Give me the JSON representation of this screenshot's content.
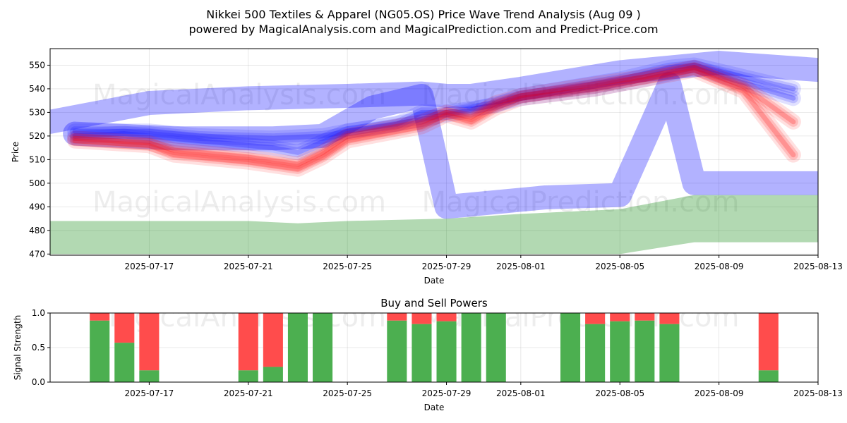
{
  "title_line1": "Nikkei 500 Textiles & Apparel (NG05.OS) Price Wave Trend Analysis (Aug 09 )",
  "title_line2": "powered by MagicalAnalysis.com and MagicalPrediction.com and Predict-Price.com",
  "watermarks": [
    "MagicalAnalysis.com",
    "MagicalPrediction.com"
  ],
  "colors": {
    "blue_band": "#0000ff",
    "red_band": "#ff0000",
    "green_band": "#008000",
    "buy_bar": "#4caf50",
    "sell_bar": "#ff4c4c"
  },
  "chart_data": [
    {
      "type": "area",
      "title": "",
      "xlabel": "Date",
      "ylabel": "Price",
      "xlim": [
        "2025-07-13",
        "2025-08-13"
      ],
      "ylim": [
        469.5,
        557
      ],
      "x_ticks": [
        "2025-07-17",
        "2025-07-21",
        "2025-07-25",
        "2025-07-29",
        "2025-08-01",
        "2025-08-05",
        "2025-08-09",
        "2025-08-13"
      ],
      "y_ticks": [
        470,
        480,
        490,
        500,
        510,
        520,
        530,
        540,
        550
      ],
      "grid": true,
      "series": [
        {
          "color": "blue",
          "kind": "wave",
          "points": [
            [
              "2025-07-14",
              522
            ],
            [
              "2025-07-17",
              522
            ],
            [
              "2025-07-19",
              520
            ],
            [
              "2025-07-22",
              519
            ],
            [
              "2025-07-24",
              520
            ],
            [
              "2025-07-25",
              522
            ],
            [
              "2025-07-27",
              525
            ],
            [
              "2025-07-28",
              530
            ],
            [
              "2025-07-29",
              530
            ],
            [
              "2025-07-31",
              533
            ],
            [
              "2025-08-01",
              537
            ],
            [
              "2025-08-05",
              544
            ],
            [
              "2025-08-07",
              549
            ],
            [
              "2025-08-08",
              550
            ],
            [
              "2025-08-12",
              540
            ]
          ]
        },
        {
          "color": "blue",
          "kind": "wave",
          "points": [
            [
              "2025-07-14",
              520
            ],
            [
              "2025-07-16",
              521
            ],
            [
              "2025-07-18",
              519
            ],
            [
              "2025-07-20",
              517
            ],
            [
              "2025-07-22",
              515
            ],
            [
              "2025-07-23",
              513
            ],
            [
              "2025-07-25",
              522
            ],
            [
              "2025-07-28",
              527
            ],
            [
              "2025-07-30",
              531
            ],
            [
              "2025-08-01",
              536
            ],
            [
              "2025-08-04",
              540
            ],
            [
              "2025-08-06",
              544
            ],
            [
              "2025-08-08",
              549
            ],
            [
              "2025-08-12",
              536
            ]
          ]
        },
        {
          "color": "blue",
          "kind": "broad",
          "points": [
            [
              "2025-07-13",
              526
            ],
            [
              "2025-07-17",
              534
            ],
            [
              "2025-07-21",
              536
            ],
            [
              "2025-07-25",
              537
            ],
            [
              "2025-07-28",
              538
            ],
            [
              "2025-07-29",
              537
            ],
            [
              "2025-07-30",
              537
            ],
            [
              "2025-08-01",
              540
            ],
            [
              "2025-08-05",
              547
            ],
            [
              "2025-08-09",
              551
            ],
            [
              "2025-08-13",
              548
            ]
          ]
        },
        {
          "color": "blue",
          "kind": "broad",
          "points": [
            [
              "2025-07-14",
              521
            ],
            [
              "2025-07-18",
              519
            ],
            [
              "2025-07-22",
              519
            ],
            [
              "2025-07-24",
              520
            ],
            [
              "2025-07-26",
              532
            ],
            [
              "2025-07-28",
              537
            ],
            [
              "2025-07-29",
              490
            ],
            [
              "2025-07-31",
              492
            ],
            [
              "2025-08-02",
              494
            ],
            [
              "2025-08-05",
              495
            ],
            [
              "2025-08-07",
              542
            ],
            [
              "2025-08-08",
              500
            ],
            [
              "2025-08-13",
              500
            ]
          ]
        },
        {
          "color": "red",
          "kind": "wave",
          "points": [
            [
              "2025-07-14",
              519
            ],
            [
              "2025-07-17",
              517
            ],
            [
              "2025-07-18",
              514
            ],
            [
              "2025-07-21",
              511
            ],
            [
              "2025-07-23",
              508
            ],
            [
              "2025-07-24",
              513
            ],
            [
              "2025-07-25",
              520
            ],
            [
              "2025-07-28",
              526
            ],
            [
              "2025-07-29",
              530
            ],
            [
              "2025-07-30",
              528
            ],
            [
              "2025-07-31",
              534
            ],
            [
              "2025-08-01",
              537
            ],
            [
              "2025-08-04",
              542
            ],
            [
              "2025-08-06",
              545
            ],
            [
              "2025-08-08",
              549
            ],
            [
              "2025-08-10",
              541
            ],
            [
              "2025-08-12",
              526
            ]
          ]
        },
        {
          "color": "red",
          "kind": "wave",
          "points": [
            [
              "2025-07-14",
              518
            ],
            [
              "2025-07-17",
              516
            ],
            [
              "2025-07-18",
              512
            ],
            [
              "2025-07-21",
              509
            ],
            [
              "2025-07-23",
              506
            ],
            [
              "2025-07-24",
              511
            ],
            [
              "2025-07-25",
              518
            ],
            [
              "2025-07-28",
              524
            ],
            [
              "2025-07-29",
              529
            ],
            [
              "2025-07-30",
              526
            ],
            [
              "2025-07-31",
              532
            ],
            [
              "2025-08-01",
              536
            ],
            [
              "2025-08-04",
              540
            ],
            [
              "2025-08-06",
              544
            ],
            [
              "2025-08-08",
              548
            ],
            [
              "2025-08-10",
              539
            ],
            [
              "2025-08-12",
              512
            ]
          ]
        },
        {
          "color": "green",
          "kind": "band",
          "points": [
            [
              "2025-07-13",
              484,
              470
            ],
            [
              "2025-07-17",
              484,
              470
            ],
            [
              "2025-07-21",
              484,
              470
            ],
            [
              "2025-07-23",
              483,
              470
            ],
            [
              "2025-07-25",
              484,
              470
            ],
            [
              "2025-07-29",
              485,
              470
            ],
            [
              "2025-08-01",
              487,
              470
            ],
            [
              "2025-08-05",
              489,
              470
            ],
            [
              "2025-08-08",
              495,
              475
            ],
            [
              "2025-08-13",
              495,
              475
            ]
          ]
        }
      ]
    },
    {
      "type": "bar",
      "title": "Buy and Sell Powers",
      "xlabel": "Date",
      "ylabel": "Signal Strength",
      "xlim": [
        "2025-07-13",
        "2025-08-13"
      ],
      "ylim": [
        0,
        1.0
      ],
      "x_ticks": [
        "2025-07-17",
        "2025-07-21",
        "2025-07-25",
        "2025-07-29",
        "2025-08-01",
        "2025-08-05",
        "2025-08-09",
        "2025-08-13"
      ],
      "y_ticks": [
        "0.0",
        "0.5",
        "1.0"
      ],
      "grid": true,
      "series": [
        {
          "name": "buy",
          "color": "green"
        },
        {
          "name": "sell",
          "color": "red"
        }
      ],
      "bars": [
        {
          "date": "2025-07-15",
          "buy": 0.89
        },
        {
          "date": "2025-07-16",
          "buy": 0.57
        },
        {
          "date": "2025-07-17",
          "buy": 0.17
        },
        {
          "date": "2025-07-21",
          "buy": 0.17
        },
        {
          "date": "2025-07-22",
          "buy": 0.22
        },
        {
          "date": "2025-07-23",
          "buy": 1.0
        },
        {
          "date": "2025-07-24",
          "buy": 1.0
        },
        {
          "date": "2025-07-27",
          "buy": 0.89
        },
        {
          "date": "2025-07-28",
          "buy": 0.84
        },
        {
          "date": "2025-07-29",
          "buy": 0.88
        },
        {
          "date": "2025-07-30",
          "buy": 1.0
        },
        {
          "date": "2025-07-31",
          "buy": 1.0
        },
        {
          "date": "2025-08-03",
          "buy": 1.0
        },
        {
          "date": "2025-08-04",
          "buy": 0.84
        },
        {
          "date": "2025-08-05",
          "buy": 0.88
        },
        {
          "date": "2025-08-06",
          "buy": 0.89
        },
        {
          "date": "2025-08-07",
          "buy": 0.84
        },
        {
          "date": "2025-08-11",
          "buy": 0.17
        }
      ]
    }
  ]
}
